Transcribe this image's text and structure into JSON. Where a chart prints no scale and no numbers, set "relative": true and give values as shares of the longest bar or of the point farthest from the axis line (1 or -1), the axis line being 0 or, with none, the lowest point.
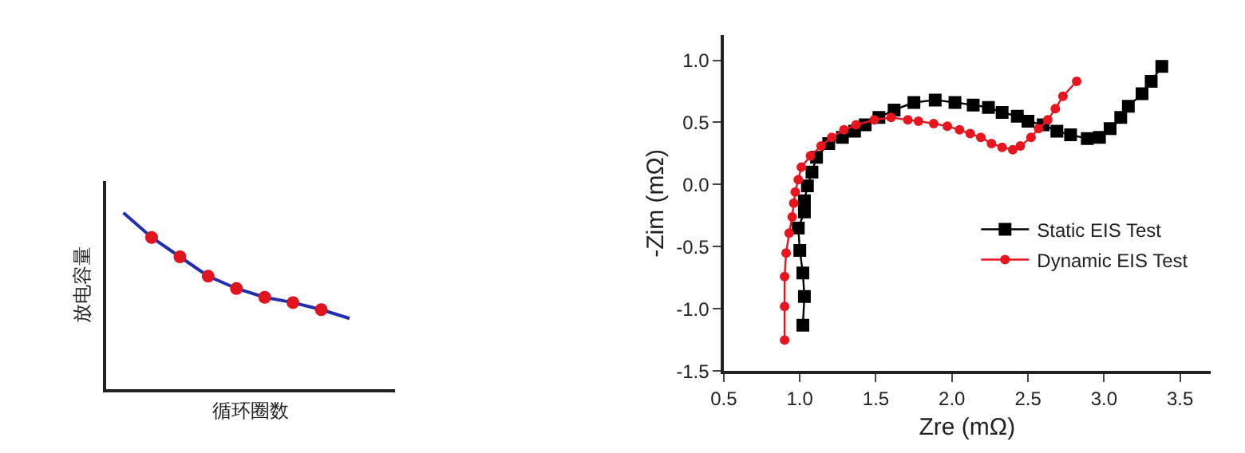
{
  "chart_data": [
    {
      "type": "line",
      "relative": true,
      "xlabel": "循环圈数",
      "ylabel": "放电容量",
      "categories": [
        null,
        null,
        null,
        null,
        null,
        null,
        null,
        null,
        null
      ],
      "series": [
        {
          "type": "line",
          "color": "#1f2fb0",
          "values": [
            1,
            0.86,
            0.75,
            0.64,
            0.57,
            0.52,
            0.49,
            0.45,
            0.4
          ],
          "marker": "circle",
          "colors": [
            null,
            "#e0141e",
            "#e0141e",
            "#e0141e",
            "#e0141e",
            "#e0141e",
            "#e0141e",
            "#e0141e",
            null
          ]
        }
      ]
    },
    {
      "type": "line",
      "xlabel": "Zre (mΩ)",
      "ylabel": "-Zim (mΩ)",
      "xlim": [
        0.5,
        3.7
      ],
      "ylim": [
        -1.5,
        1.2
      ],
      "xticks": [
        0.5,
        {
          "value": 1,
          "label": "1.0"
        },
        1.5,
        {
          "value": 2,
          "label": "2.0"
        },
        2.5,
        {
          "value": 3,
          "label": "3.0"
        },
        3.5
      ],
      "yticks": [
        -1.5,
        {
          "value": -1,
          "label": "-1.0"
        },
        -0.5,
        {
          "value": 0,
          "label": "0.0"
        },
        0.5,
        {
          "value": 1,
          "label": "1.0"
        }
      ],
      "legend": "bottom right",
      "series": [
        {
          "name": "Static EIS Test",
          "color": "#000000",
          "marker": "square",
          "x": [
            1.02,
            1.03,
            1.02,
            1.0,
            0.99,
            1.03,
            1.03,
            1.05,
            1.08,
            1.11,
            1.19,
            1.28,
            1.36,
            1.43,
            1.52,
            1.62,
            1.75,
            1.89,
            2.02,
            2.14,
            2.24,
            2.33,
            2.43,
            2.5,
            2.6,
            2.69,
            2.78,
            2.89,
            2.97,
            3.04,
            3.11,
            3.16,
            3.25,
            3.31,
            3.38
          ],
          "values": [
            -1.13,
            -0.9,
            -0.71,
            -0.53,
            -0.35,
            -0.22,
            -0.13,
            -0.01,
            0.1,
            0.22,
            0.33,
            0.38,
            0.43,
            0.48,
            0.54,
            0.6,
            0.66,
            0.68,
            0.66,
            0.64,
            0.62,
            0.58,
            0.55,
            0.51,
            0.48,
            0.43,
            0.4,
            0.37,
            0.38,
            0.45,
            0.54,
            0.63,
            0.73,
            0.83,
            0.95
          ]
        },
        {
          "name": "Dynamic EIS Test",
          "color": "#e8141e",
          "marker": "circle",
          "x": [
            0.9,
            0.9,
            0.9,
            0.91,
            0.93,
            0.95,
            0.96,
            0.97,
            0.99,
            1.01,
            1.07,
            1.14,
            1.21,
            1.29,
            1.37,
            1.49,
            1.6,
            1.71,
            1.78,
            1.88,
            1.97,
            2.05,
            2.12,
            2.19,
            2.26,
            2.33,
            2.4,
            2.45,
            2.52,
            2.57,
            2.63,
            2.68,
            2.73,
            2.82
          ],
          "values": [
            -1.25,
            -0.98,
            -0.74,
            -0.55,
            -0.39,
            -0.26,
            -0.15,
            -0.06,
            0.04,
            0.14,
            0.23,
            0.31,
            0.38,
            0.44,
            0.48,
            0.52,
            0.54,
            0.52,
            0.51,
            0.49,
            0.47,
            0.44,
            0.41,
            0.38,
            0.33,
            0.3,
            0.28,
            0.31,
            0.38,
            0.45,
            0.52,
            0.61,
            0.71,
            0.83
          ]
        }
      ]
    }
  ]
}
